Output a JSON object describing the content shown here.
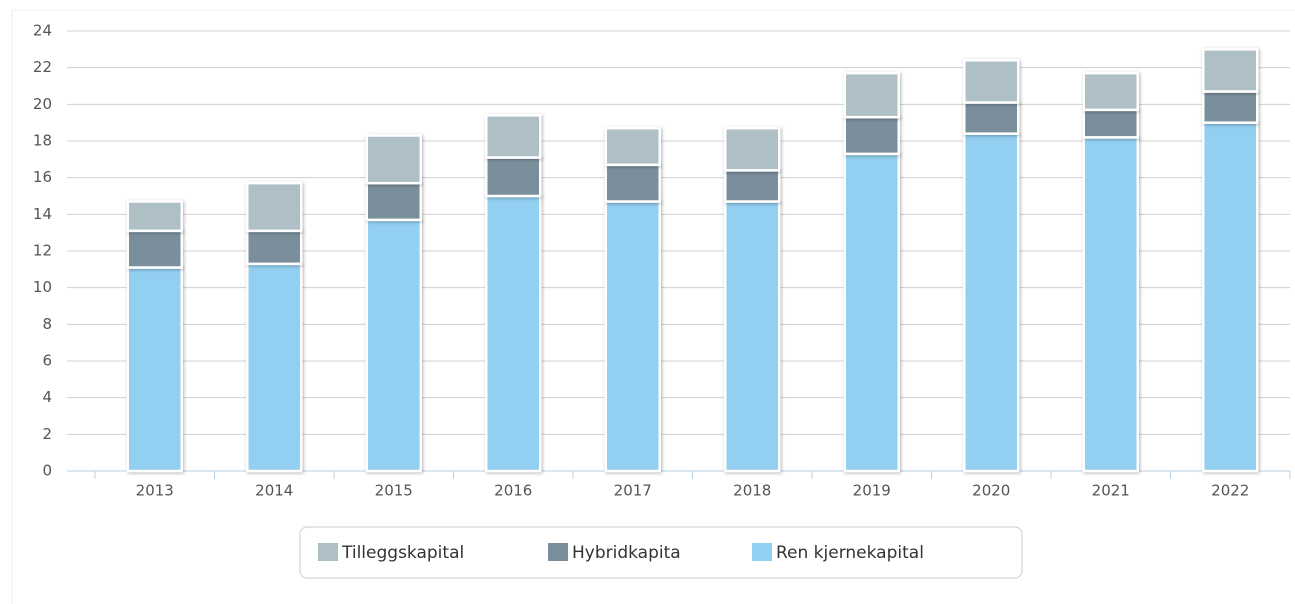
{
  "chart_data": {
    "type": "bar",
    "stacked": true,
    "categories": [
      "2013",
      "2014",
      "2015",
      "2016",
      "2017",
      "2018",
      "2019",
      "2020",
      "2021",
      "2022"
    ],
    "series": [
      {
        "name": "Tilleggskapital",
        "color": "#aebfc6",
        "values": [
          1.6,
          2.6,
          2.6,
          2.3,
          2.0,
          2.3,
          2.4,
          2.3,
          2.0,
          2.3
        ]
      },
      {
        "name": "Hybridkapita",
        "color": "#7a8e9c",
        "values": [
          2.0,
          1.8,
          2.0,
          2.1,
          2.0,
          1.7,
          2.0,
          1.7,
          1.5,
          1.7
        ]
      },
      {
        "name": "Ren kjernekapital",
        "color": "#93cff0",
        "values": [
          11.1,
          11.3,
          13.7,
          15.0,
          14.7,
          14.7,
          17.3,
          18.4,
          18.2,
          19.0
        ]
      }
    ],
    "ylim": [
      0,
      24
    ],
    "yticks": [
      0,
      2,
      4,
      6,
      8,
      10,
      12,
      14,
      16,
      18,
      20,
      22,
      24
    ],
    "grid": true,
    "legend": "bottom"
  }
}
